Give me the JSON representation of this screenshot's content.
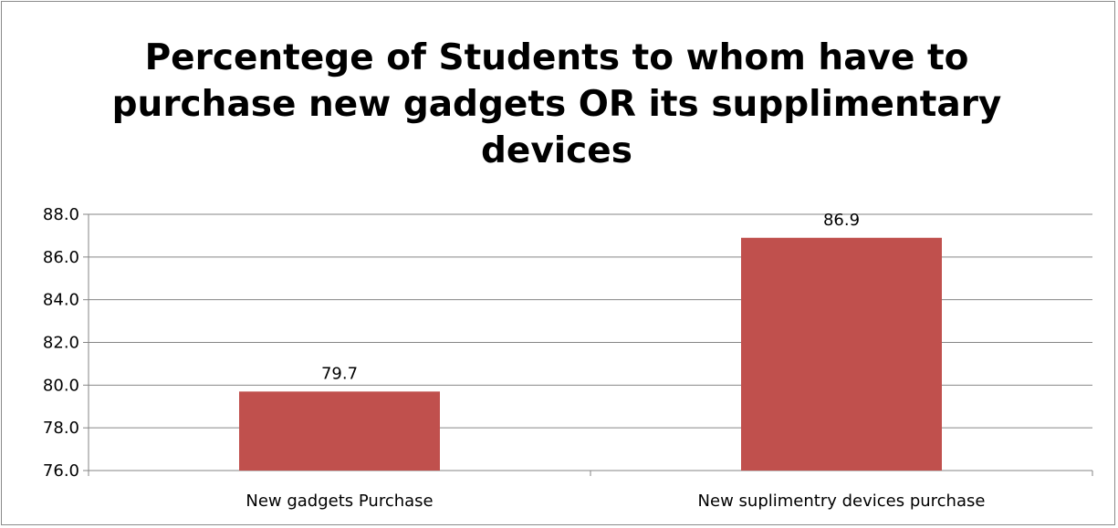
{
  "chart_data": {
    "type": "bar",
    "title": "Percentege of Students to whom have to purchase new gadgets OR its supplimentary devices",
    "categories": [
      "New gadgets Purchase",
      "New suplimentry devices purchase"
    ],
    "values": [
      79.7,
      86.9
    ],
    "data_labels": [
      "79.7",
      "86.9"
    ],
    "ylim": [
      76.0,
      88.0
    ],
    "yticks": [
      "76.0",
      "78.0",
      "80.0",
      "82.0",
      "84.0",
      "86.0",
      "88.0"
    ],
    "xlabel": "",
    "ylabel": "",
    "grid": true,
    "legend": "none",
    "bar_color": "#C0504D",
    "grid_color": "#868686"
  }
}
